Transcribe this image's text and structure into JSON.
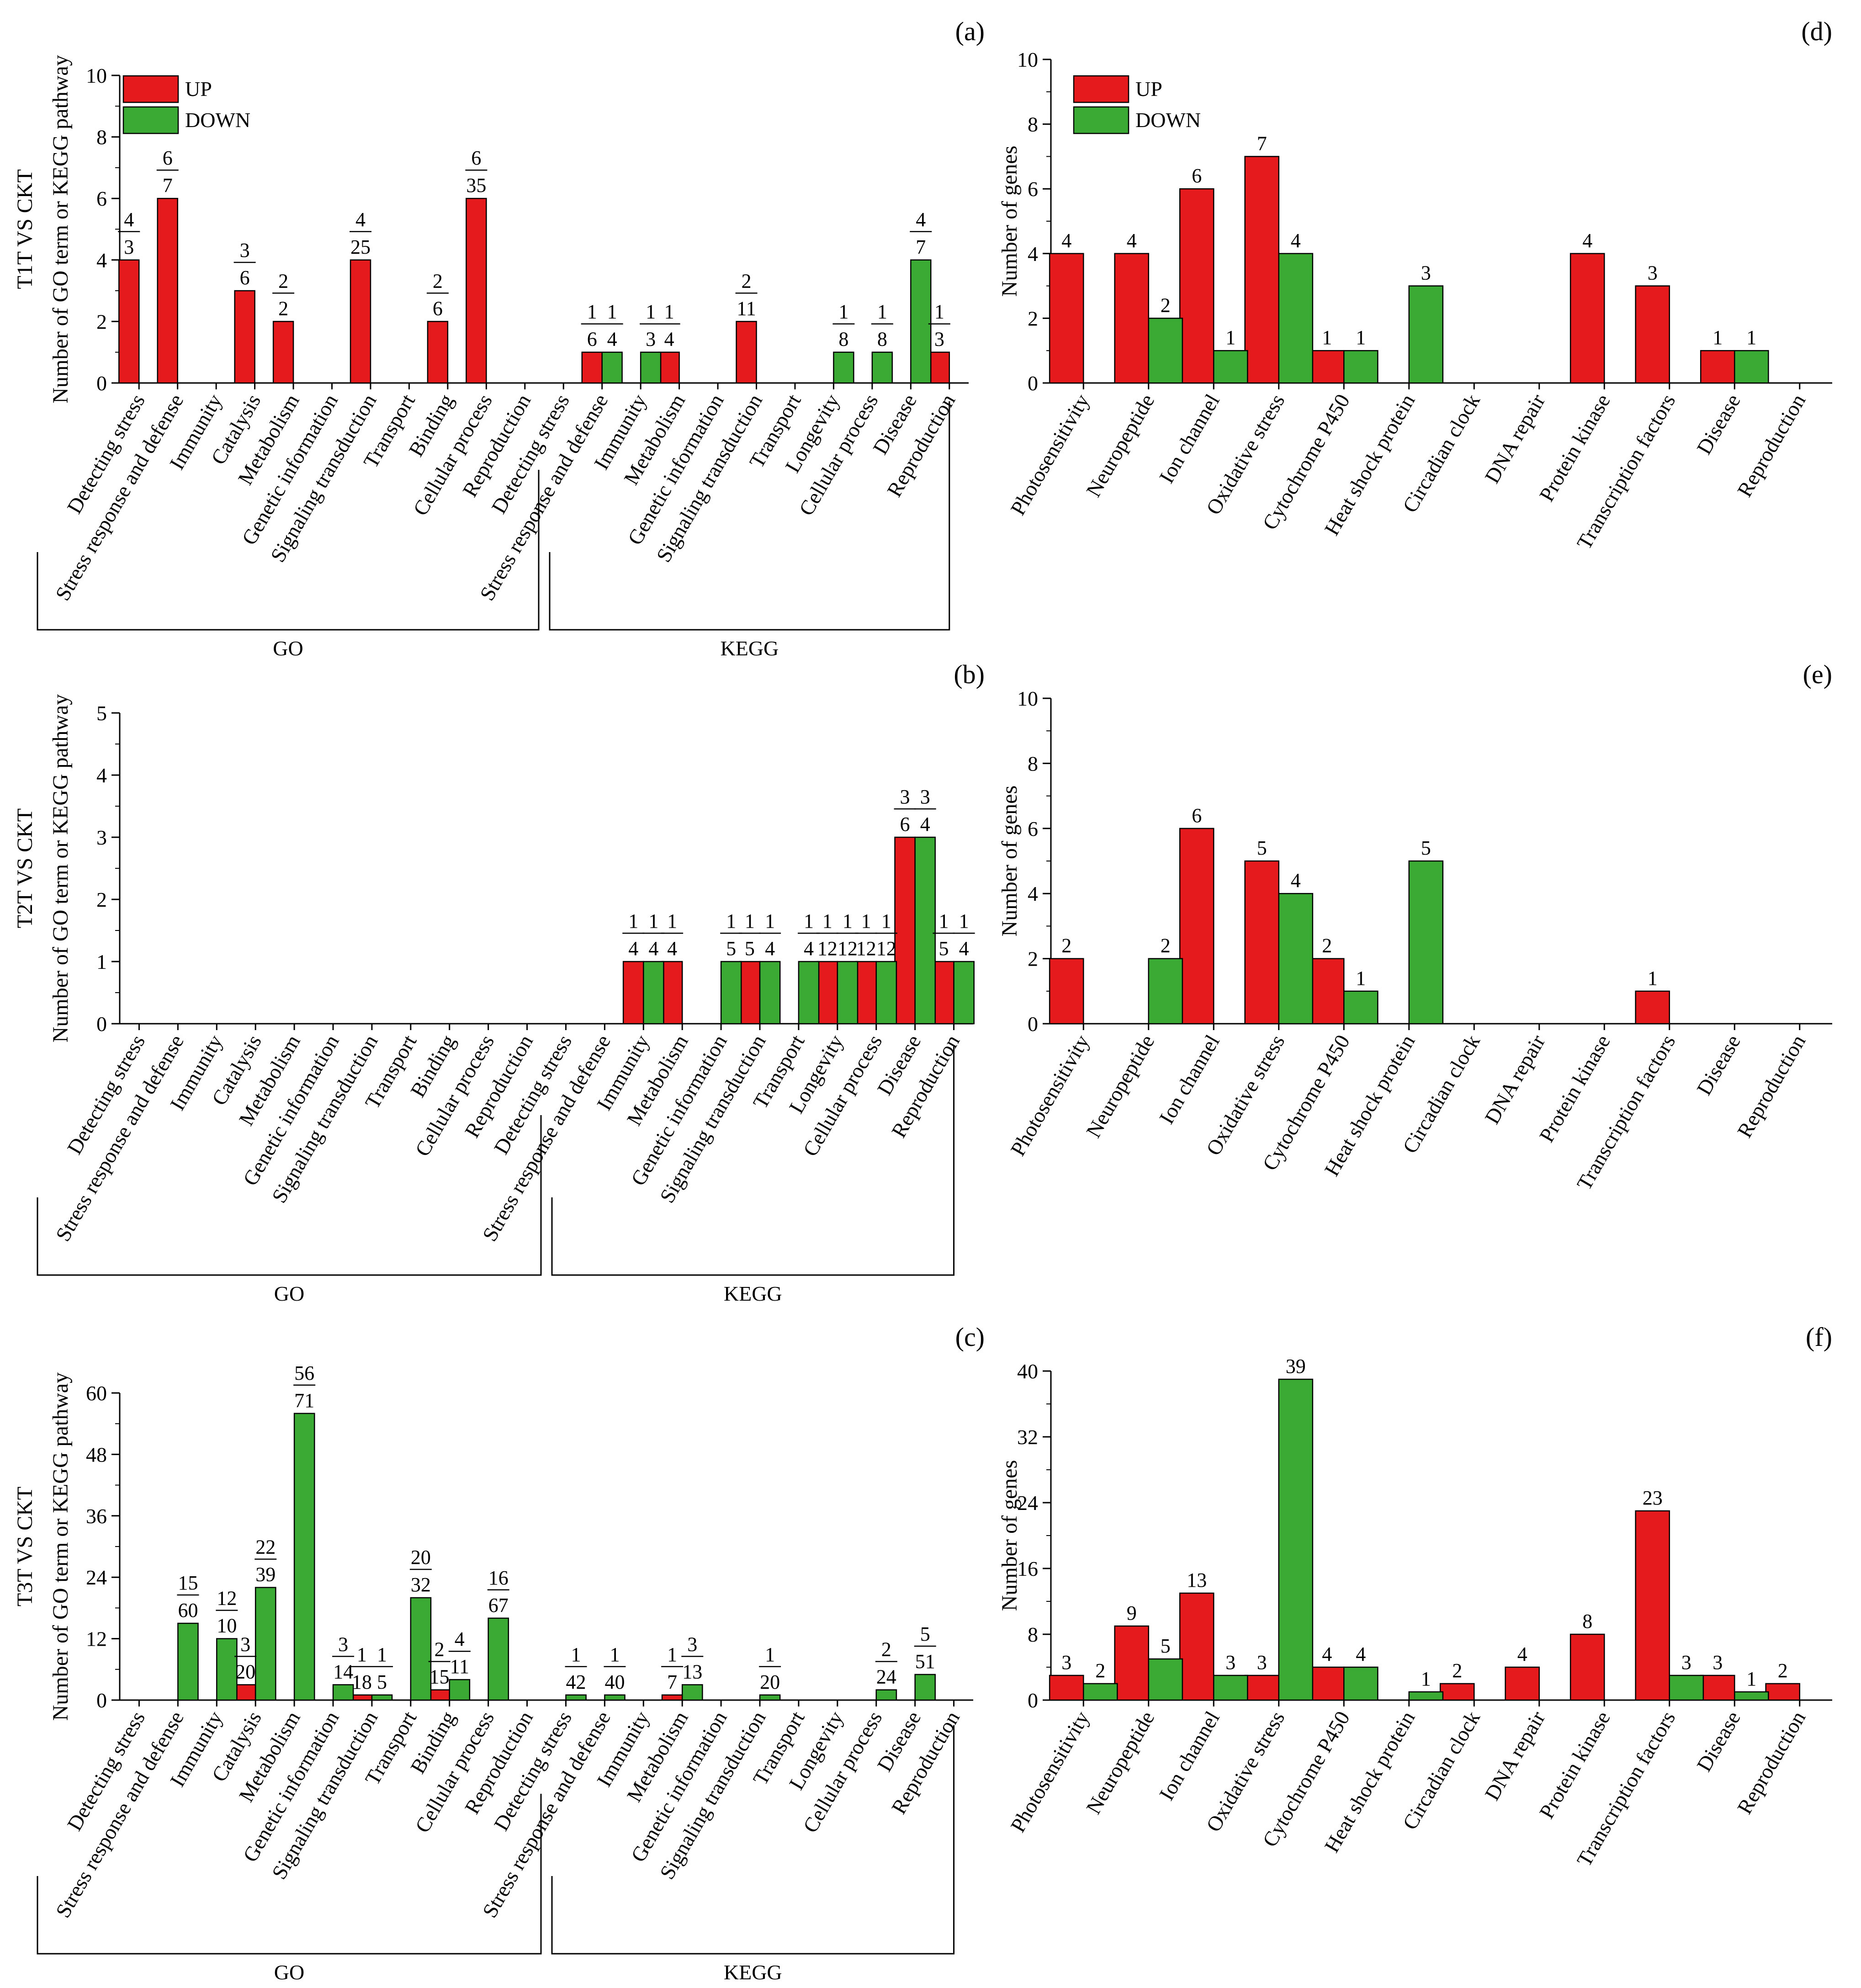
{
  "colors": {
    "up": "#e41a1c",
    "down": "#3aaa35"
  },
  "legend": {
    "up": "UP",
    "down": "DOWN"
  },
  "group_labels": {
    "go": "GO",
    "kegg": "KEGG"
  },
  "chart_data": [
    {
      "id": "a",
      "panel_label": "(a)",
      "type": "bar",
      "title": "T1T VS CKT",
      "ylabel": "Number of  GO term or KEGG pathway",
      "ylim": [
        0,
        10
      ],
      "yticks": [
        "0",
        "2",
        "4",
        "6",
        "8",
        "10"
      ],
      "legend": true,
      "categories": [
        "Detecting stress",
        "Stress response and defense",
        "Immunity",
        "Catalysis",
        "Metabolism",
        "Genetic information",
        "Signaling transduction",
        "Transport",
        "Binding",
        "Cellular process",
        "Reproduction",
        "Detecting stress",
        "Stress response and defense",
        "Immunity",
        "Metabolism",
        "Genetic information",
        "Signaling transduction",
        "Transport",
        "Longevity",
        "Cellular process",
        "Disease",
        "Reproduction"
      ],
      "groups": [
        {
          "name": "GO",
          "start": 0,
          "end": 10
        },
        {
          "name": "KEGG",
          "start": 11,
          "end": 21
        }
      ],
      "series": [
        {
          "name": "UP",
          "values": [
            4,
            6,
            0,
            3,
            2,
            0,
            4,
            0,
            2,
            6,
            0,
            0,
            1,
            0,
            1,
            0,
            2,
            0,
            0,
            0,
            0,
            1
          ]
        },
        {
          "name": "DOWN",
          "values": [
            0,
            0,
            0,
            0,
            0,
            0,
            0,
            0,
            0,
            0,
            0,
            0,
            1,
            1,
            0,
            0,
            0,
            0,
            1,
            1,
            4,
            0
          ]
        }
      ],
      "annotations": [
        {
          "cat": 0,
          "num": "4",
          "den": "3"
        },
        {
          "cat": 1,
          "num": "6",
          "den": "7"
        },
        {
          "cat": 3,
          "num": "3",
          "den": "6"
        },
        {
          "cat": 4,
          "num": "2",
          "den": "2"
        },
        {
          "cat": 6,
          "num": "4",
          "den": "25"
        },
        {
          "cat": 8,
          "num": "2",
          "den": "6"
        },
        {
          "cat": 9,
          "num": "6",
          "den": "35"
        },
        {
          "cat": 12,
          "side": "up",
          "num": "1",
          "den": "6"
        },
        {
          "cat": 12,
          "side": "down",
          "num": "1",
          "den": "4"
        },
        {
          "cat": 13,
          "side": "down",
          "num": "1",
          "den": "3"
        },
        {
          "cat": 14,
          "num": "1",
          "den": "4"
        },
        {
          "cat": 16,
          "num": "2",
          "den": "11"
        },
        {
          "cat": 18,
          "num": "1",
          "den": "8"
        },
        {
          "cat": 19,
          "num": "1",
          "den": "8"
        },
        {
          "cat": 20,
          "num": "4",
          "den": "7"
        },
        {
          "cat": 21,
          "num": "1",
          "den": "3"
        }
      ]
    },
    {
      "id": "b",
      "panel_label": "(b)",
      "type": "bar",
      "title": "T2T VS CKT",
      "ylabel": "Number of  GO term or KEGG pathway",
      "ylim": [
        0,
        5
      ],
      "yticks": [
        "0",
        "1",
        "2",
        "3",
        "4",
        "5"
      ],
      "legend": false,
      "categories": [
        "Detecting stress",
        "Stress response and defense",
        "Immunity",
        "Catalysis",
        "Metabolism",
        "Genetic information",
        "Signaling transduction",
        "Transport",
        "Binding",
        "Cellular process",
        "Reproduction",
        "Detecting stress",
        "Stress response and defense",
        "Immunity",
        "Metabolism",
        "Genetic information",
        "Signaling transduction",
        "Transport",
        "Longevity",
        "Cellular process",
        "Disease",
        "Reproduction"
      ],
      "groups": [
        {
          "name": "GO",
          "start": 0,
          "end": 10
        },
        {
          "name": "KEGG",
          "start": 11,
          "end": 21
        }
      ],
      "series": [
        {
          "name": "UP",
          "values": [
            0,
            0,
            0,
            0,
            0,
            0,
            0,
            0,
            0,
            0,
            0,
            0,
            0,
            1,
            1,
            0,
            1,
            0,
            1,
            1,
            3,
            1
          ]
        },
        {
          "name": "DOWN",
          "values": [
            0,
            0,
            0,
            0,
            0,
            0,
            0,
            0,
            0,
            0,
            0,
            0,
            0,
            1,
            0,
            1,
            1,
            1,
            1,
            1,
            3,
            1
          ]
        }
      ],
      "annotations": [
        {
          "cat": 13,
          "side": "up",
          "num": "1",
          "den": "4"
        },
        {
          "cat": 13,
          "side": "down",
          "num": "1",
          "den": "4"
        },
        {
          "cat": 14,
          "num": "1",
          "den": "4"
        },
        {
          "cat": 15,
          "num": "1",
          "den": "5"
        },
        {
          "cat": 16,
          "side": "up",
          "num": "1",
          "den": "5"
        },
        {
          "cat": 16,
          "side": "down",
          "num": "1",
          "den": "4"
        },
        {
          "cat": 17,
          "num": "1",
          "den": "4"
        },
        {
          "cat": 18,
          "side": "up",
          "num": "1",
          "den": "12"
        },
        {
          "cat": 18,
          "side": "down",
          "num": "1",
          "den": "12"
        },
        {
          "cat": 19,
          "side": "up",
          "num": "1",
          "den": "12"
        },
        {
          "cat": 19,
          "side": "down",
          "num": "1",
          "den": "12"
        },
        {
          "cat": 20,
          "side": "up",
          "num": "3",
          "den": "6"
        },
        {
          "cat": 20,
          "side": "down",
          "num": "3",
          "den": "4"
        },
        {
          "cat": 21,
          "side": "up",
          "num": "1",
          "den": "5"
        },
        {
          "cat": 21,
          "side": "down",
          "num": "1",
          "den": "4"
        }
      ]
    },
    {
      "id": "c",
      "panel_label": "(c)",
      "type": "bar",
      "title": "T3T VS CKT",
      "ylabel": "Number of  GO term or KEGG pathway",
      "ylim": [
        0,
        60
      ],
      "yticks": [
        "0",
        "12",
        "24",
        "36",
        "48",
        "60"
      ],
      "legend": false,
      "categories": [
        "Detecting stress",
        "Stress response and defense",
        "Immunity",
        "Catalysis",
        "Metabolism",
        "Genetic information",
        "Signaling transduction",
        "Transport",
        "Binding",
        "Cellular process",
        "Reproduction",
        "Detecting stress",
        "Stress response and defense",
        "Immunity",
        "Metabolism",
        "Genetic information",
        "Signaling transduction",
        "Transport",
        "Longevity",
        "Cellular process",
        "Disease",
        "Reproduction"
      ],
      "groups": [
        {
          "name": "GO",
          "start": 0,
          "end": 10
        },
        {
          "name": "KEGG",
          "start": 11,
          "end": 21
        }
      ],
      "series": [
        {
          "name": "UP",
          "values": [
            0,
            0,
            0,
            3,
            0,
            0,
            1,
            0,
            2,
            0,
            0,
            0,
            0,
            0,
            1,
            0,
            0,
            0,
            0,
            0,
            0,
            0
          ]
        },
        {
          "name": "DOWN",
          "values": [
            0,
            15,
            12,
            22,
            56,
            3,
            1,
            20,
            4,
            16,
            0,
            1,
            1,
            0,
            3,
            0,
            1,
            0,
            0,
            2,
            5,
            0
          ]
        }
      ],
      "annotations": [
        {
          "cat": 1,
          "num": "15",
          "den": "60"
        },
        {
          "cat": 2,
          "num": "12",
          "den": "10"
        },
        {
          "cat": 3,
          "side": "up",
          "num": "3",
          "den": "20"
        },
        {
          "cat": 3,
          "side": "down",
          "num": "22",
          "den": "39"
        },
        {
          "cat": 4,
          "num": "56",
          "den": "71"
        },
        {
          "cat": 5,
          "num": "3",
          "den": "14"
        },
        {
          "cat": 6,
          "side": "up",
          "num": "1",
          "den": "18"
        },
        {
          "cat": 6,
          "side": "down",
          "num": "1",
          "den": "5"
        },
        {
          "cat": 7,
          "num": "20",
          "den": "32"
        },
        {
          "cat": 8,
          "side": "up",
          "num": "2",
          "den": "15"
        },
        {
          "cat": 8,
          "side": "down",
          "num": "4",
          "den": "11"
        },
        {
          "cat": 9,
          "num": "16",
          "den": "67"
        },
        {
          "cat": 11,
          "num": "1",
          "den": "42"
        },
        {
          "cat": 12,
          "num": "1",
          "den": "40"
        },
        {
          "cat": 14,
          "side": "up",
          "num": "1",
          "den": "7"
        },
        {
          "cat": 14,
          "side": "down",
          "num": "3",
          "den": "13"
        },
        {
          "cat": 16,
          "num": "1",
          "den": "20"
        },
        {
          "cat": 19,
          "num": "2",
          "den": "24"
        },
        {
          "cat": 20,
          "num": "5",
          "den": "51"
        }
      ]
    },
    {
      "id": "d",
      "panel_label": "(d)",
      "type": "bar",
      "ylabel": "Number of  genes",
      "ylim": [
        0,
        10
      ],
      "yticks": [
        "0",
        "2",
        "4",
        "6",
        "8",
        "10"
      ],
      "legend": true,
      "categories": [
        "Photosensitivity",
        "Neuropeptide",
        "Ion  channel",
        "Oxidative stress",
        "Cytochrome P450",
        "Heat shock protein",
        "Circadian clock",
        "DNA repair",
        "Protein kinase",
        "Transcription factors",
        "Disease",
        "Reproduction"
      ],
      "series": [
        {
          "name": "UP",
          "values": [
            4,
            4,
            6,
            7,
            1,
            0,
            0,
            0,
            4,
            3,
            1,
            0
          ]
        },
        {
          "name": "DOWN",
          "values": [
            0,
            2,
            1,
            4,
            1,
            3,
            0,
            0,
            0,
            0,
            1,
            0
          ]
        }
      ]
    },
    {
      "id": "e",
      "panel_label": "(e)",
      "type": "bar",
      "ylabel": "Number of  genes",
      "ylim": [
        0,
        10
      ],
      "yticks": [
        "0",
        "2",
        "4",
        "6",
        "8",
        "10"
      ],
      "legend": false,
      "categories": [
        "Photosensitivity",
        "Neuropeptide",
        "Ion  channel",
        "Oxidative stress",
        "Cytochrome P450",
        "Heat shock protein",
        "Circadian clock",
        "DNA repair",
        "Protein kinase",
        "Transcription factors",
        "Disease",
        "Reproduction"
      ],
      "series": [
        {
          "name": "UP",
          "values": [
            2,
            0,
            6,
            5,
            2,
            0,
            0,
            0,
            0,
            1,
            0,
            0
          ]
        },
        {
          "name": "DOWN",
          "values": [
            0,
            2,
            0,
            4,
            1,
            5,
            0,
            0,
            0,
            0,
            0,
            0
          ]
        }
      ]
    },
    {
      "id": "f",
      "panel_label": "(f)",
      "type": "bar",
      "ylabel": "Number of  genes",
      "ylim": [
        0,
        40
      ],
      "yticks": [
        "0",
        "8",
        "16",
        "24",
        "32",
        "40"
      ],
      "legend": false,
      "categories": [
        "Photosensitivity",
        "Neuropeptide",
        "Ion  channel",
        "Oxidative stress",
        "Cytochrome P450",
        "Heat shock protein",
        "Circadian clock",
        "DNA repair",
        "Protein kinase",
        "Transcription factors",
        "Disease",
        "Reproduction"
      ],
      "series": [
        {
          "name": "UP",
          "values": [
            3,
            9,
            13,
            3,
            4,
            0,
            2,
            4,
            8,
            23,
            3,
            2
          ]
        },
        {
          "name": "DOWN",
          "values": [
            2,
            5,
            3,
            39,
            4,
            1,
            0,
            0,
            0,
            3,
            1,
            0
          ]
        }
      ]
    }
  ]
}
